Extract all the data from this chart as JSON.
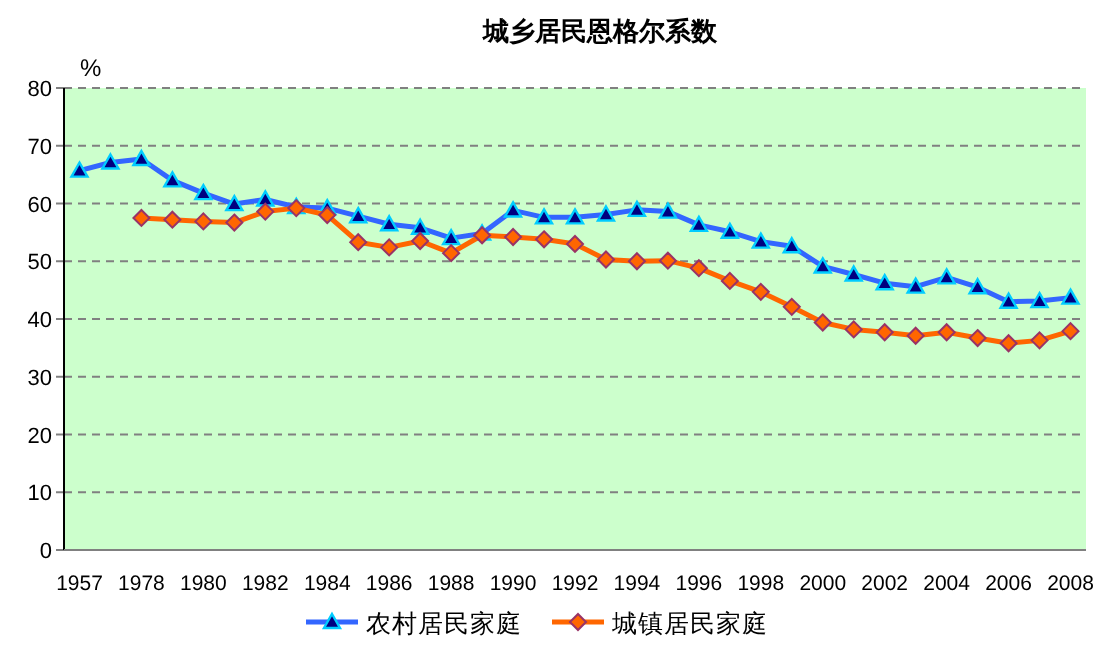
{
  "chart_data": {
    "type": "line",
    "title": "城乡居民恩格尔系数",
    "ylabel": "%",
    "categories": [
      "1957",
      null,
      "1978",
      null,
      "1980",
      null,
      "1982",
      null,
      "1984",
      null,
      "1986",
      null,
      "1988",
      null,
      "1990",
      null,
      "1992",
      null,
      "1994",
      null,
      "1996",
      null,
      "1998",
      null,
      "2000",
      null,
      "2002",
      null,
      "2004",
      null,
      "2006",
      null,
      "2008"
    ],
    "series": [
      {
        "name": "农村居民家庭",
        "color": "#3366ff",
        "marker": "triangle",
        "values": [
          65.7,
          67.1,
          67.7,
          64.0,
          61.8,
          59.9,
          60.7,
          59.4,
          59.2,
          57.8,
          56.4,
          55.8,
          54.0,
          54.8,
          58.8,
          57.6,
          57.6,
          58.1,
          58.9,
          58.6,
          56.3,
          55.1,
          53.4,
          52.6,
          49.1,
          47.7,
          46.2,
          45.6,
          47.2,
          45.5,
          43.0,
          43.1,
          43.7
        ]
      },
      {
        "name": "城镇居民家庭",
        "color": "#ff6600",
        "marker": "diamond",
        "values": [
          null,
          null,
          57.5,
          57.2,
          56.9,
          56.7,
          58.6,
          59.2,
          58.0,
          53.3,
          52.4,
          53.5,
          51.4,
          54.5,
          54.2,
          53.8,
          53.0,
          50.3,
          50.0,
          50.1,
          48.8,
          46.6,
          44.7,
          42.1,
          39.4,
          38.2,
          37.7,
          37.1,
          37.7,
          36.7,
          35.8,
          36.3,
          37.9
        ]
      }
    ],
    "ylim": [
      0,
      80
    ],
    "yticks": [
      0,
      10,
      20,
      30,
      40,
      50,
      60,
      70,
      80
    ],
    "grid": "y",
    "legend": "bottom"
  }
}
